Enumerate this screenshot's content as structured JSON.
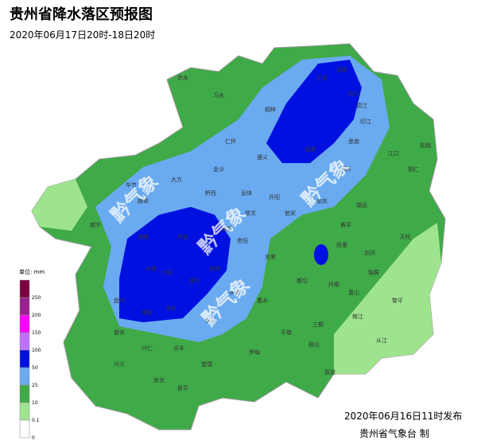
{
  "header": {
    "title": "贵州省降水落区预报图",
    "subtitle": "2020年06月17日20时-18日20时"
  },
  "legend": {
    "unit": "单位: mm",
    "ticks": [
      250,
      200,
      150,
      100,
      50,
      25,
      10,
      0.1,
      0
    ],
    "colors": [
      "#7a0040",
      "#9a2090",
      "#ff00ff",
      "#c070ff",
      "#0010e0",
      "#6aaaf0",
      "#3faa48",
      "#9ee48e",
      "#ffffff"
    ]
  },
  "watermark": "黔气象",
  "cities": [
    "正安",
    "道真",
    "务川",
    "桐梓",
    "习水",
    "赤水",
    "仁怀",
    "金沙",
    "大方",
    "赫章",
    "威宁",
    "水城",
    "盘州",
    "兴仁",
    "兴义",
    "安龙",
    "贞丰",
    "望谟",
    "册亨",
    "罗甸",
    "平塘",
    "独山",
    "荔波",
    "三都",
    "榕江",
    "从江",
    "黎平",
    "锦屏",
    "天柱",
    "剑河",
    "凯里",
    "镇远",
    "铜仁",
    "江口",
    "松桃",
    "印江",
    "德江",
    "思南",
    "石阡",
    "余庆",
    "湄潭",
    "遵义",
    "黄平",
    "瓮安",
    "开阳",
    "息烽",
    "修文",
    "清镇",
    "贵阳",
    "龙里",
    "都匀",
    "惠水",
    "长顺",
    "紫云",
    "镇宁",
    "关岭",
    "安顺",
    "织金",
    "纳雍",
    "黔西",
    "毕节",
    "六枝",
    "晴隆",
    "普安",
    "丹寨",
    "雷山"
  ],
  "footer": {
    "issued": "2020年06月16日11时发布",
    "producer": "贵州省气象台 制"
  }
}
